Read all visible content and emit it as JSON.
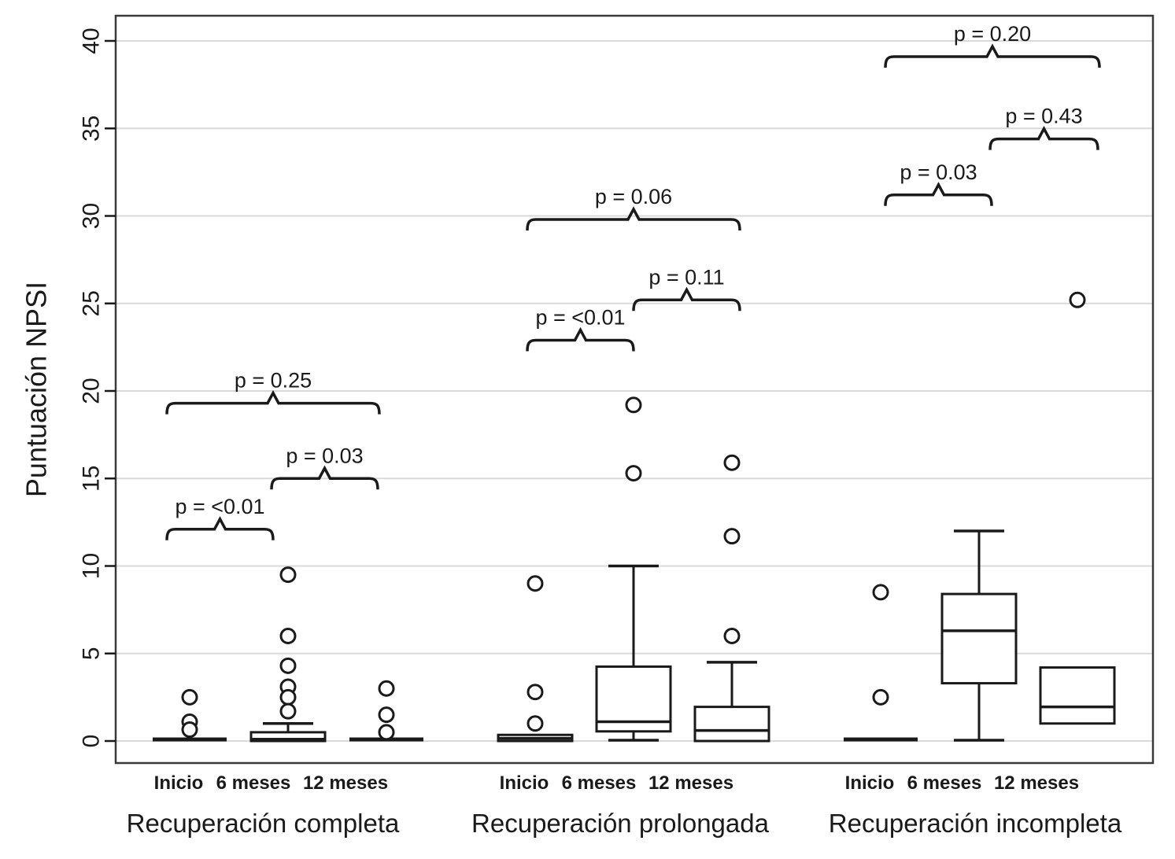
{
  "chart_data": {
    "type": "box",
    "title": "",
    "ylabel": "Puntuación NPSI",
    "xlabel": "",
    "ylim": [
      -1.3,
      41.4
    ],
    "yticks": [
      0,
      5,
      10,
      15,
      20,
      25,
      30,
      35,
      40
    ],
    "grid": "horizontal-light-gray",
    "legend": "none",
    "groups": [
      {
        "label": "Recuperación completa",
        "boxes": [
          {
            "label": "Inicio",
            "q1": 0,
            "median": 0,
            "q3": 0,
            "whisker_low": 0,
            "whisker_high": 0,
            "outliers": [
              2.5,
              1.1,
              0.65
            ]
          },
          {
            "label": "6 meses",
            "q1": 0,
            "median": 0.1,
            "q3": 0.5,
            "whisker_low": 0,
            "whisker_high": 1.0,
            "outliers": [
              9.5,
              6.0,
              4.3,
              3.1,
              2.5,
              1.7
            ]
          },
          {
            "label": "12 meses",
            "q1": 0,
            "median": 0,
            "q3": 0,
            "whisker_low": 0,
            "whisker_high": 0,
            "outliers": [
              3.0,
              1.5,
              0.5
            ]
          }
        ],
        "p_values": [
          {
            "comparison": "Inicio vs 6 meses",
            "label": "p = <0.01",
            "bracket_y": 12.1
          },
          {
            "comparison": "6 meses vs 12 meses",
            "label": "p = 0.03",
            "bracket_y": 15.0
          },
          {
            "comparison": "Inicio vs 12 meses",
            "label": "p = 0.25",
            "bracket_y": 19.3
          }
        ]
      },
      {
        "label": "Recuperación prolongada",
        "boxes": [
          {
            "label": "Inicio",
            "q1": 0,
            "median": 0.15,
            "q3": 0.35,
            "whisker_low": 0,
            "whisker_high": 0.35,
            "outliers": [
              9.0,
              2.8,
              1.0
            ]
          },
          {
            "label": "6 meses",
            "q1": 0.55,
            "median": 1.1,
            "q3": 4.25,
            "whisker_low": 0,
            "whisker_high": 10.0,
            "outliers": [
              19.2,
              15.3
            ]
          },
          {
            "label": "12 meses",
            "q1": 0,
            "median": 0.6,
            "q3": 1.95,
            "whisker_low": 0,
            "whisker_high": 4.5,
            "outliers": [
              15.9,
              11.7,
              6.0
            ]
          }
        ],
        "p_values": [
          {
            "comparison": "Inicio vs 6 meses",
            "label": "p = <0.01",
            "bracket_y": 22.9
          },
          {
            "comparison": "6 meses vs 12 meses",
            "label": "p = 0.11",
            "bracket_y": 25.2
          },
          {
            "comparison": "Inicio vs 12 meses",
            "label": "p = 0.06",
            "bracket_y": 29.8
          }
        ]
      },
      {
        "label": "Recuperación incompleta",
        "boxes": [
          {
            "label": "Inicio",
            "q1": 0,
            "median": 0,
            "q3": 0,
            "whisker_low": 0,
            "whisker_high": 0,
            "outliers": [
              8.5,
              2.5
            ]
          },
          {
            "label": "6 meses",
            "q1": 3.3,
            "median": 6.3,
            "q3": 8.4,
            "whisker_low": 0,
            "whisker_high": 12.0,
            "outliers": []
          },
          {
            "label": "12 meses",
            "q1": 1.0,
            "median": 1.95,
            "q3": 4.2,
            "whisker_low": 1.0,
            "whisker_high": 4.2,
            "outliers": [
              25.2
            ]
          }
        ],
        "p_values": [
          {
            "comparison": "Inicio vs 6 meses",
            "label": "p = 0.03",
            "bracket_y": 31.2
          },
          {
            "comparison": "6 meses vs 12 meses",
            "label": "p = 0.43",
            "bracket_y": 34.4
          },
          {
            "comparison": "Inicio vs 12 meses",
            "label": "p = 0.20",
            "bracket_y": 39.1
          }
        ]
      }
    ],
    "colors": {
      "ink": "#1a1a1a",
      "plot_border": "#3a3a3a",
      "gridline": "#d9d9d9",
      "box_fill": "#ffffff",
      "background": "#ffffff"
    }
  }
}
